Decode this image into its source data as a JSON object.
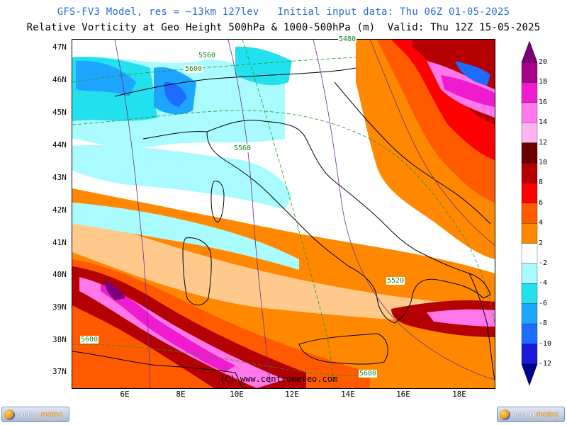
{
  "header": {
    "line1": "GFS-FV3 Model, res = ~13km 127lev   Initial input data: Thu 06Z 01-05-2025",
    "line2": "Relative Vorticity at Geo Height 500hPa & 1000-500hPa (m)  Valid: Thu 12Z 15-05-2025"
  },
  "axes": {
    "latitudes": [
      "47N",
      "46N",
      "45N",
      "44N",
      "43N",
      "42N",
      "41N",
      "40N",
      "39N",
      "38N",
      "37N"
    ],
    "longitudes": [
      "6E",
      "8E",
      "10E",
      "12E",
      "14E",
      "16E",
      "18E"
    ]
  },
  "contour_labels": [
    "5560",
    "5600",
    "5560",
    "5600",
    "5480",
    "5520",
    "5680"
  ],
  "copyright": "(C) www.centrometeo.com",
  "legend": {
    "labels": [
      "20",
      "18",
      "16",
      "14",
      "12",
      "10",
      "8",
      "6",
      "4",
      "2",
      "-2",
      "-4",
      "-6",
      "-8",
      "-10",
      "-12"
    ],
    "colors": [
      "#7a007a",
      "#a8008a",
      "#ef1ccf",
      "#ff77e8",
      "#ffb3f2",
      "#6b0000",
      "#b40000",
      "#ff0000",
      "#ff5a00",
      "#ff8800",
      "#ffffff",
      "#a9fbff",
      "#22e0ee",
      "#1ea5ff",
      "#1e6cff",
      "#1a1ad8",
      "#000090"
    ]
  },
  "logos": {
    "left": {
      "word1": "centro",
      "word2": "meteo"
    },
    "right": {
      "word1": "centro",
      "word2": "meteo"
    }
  }
}
